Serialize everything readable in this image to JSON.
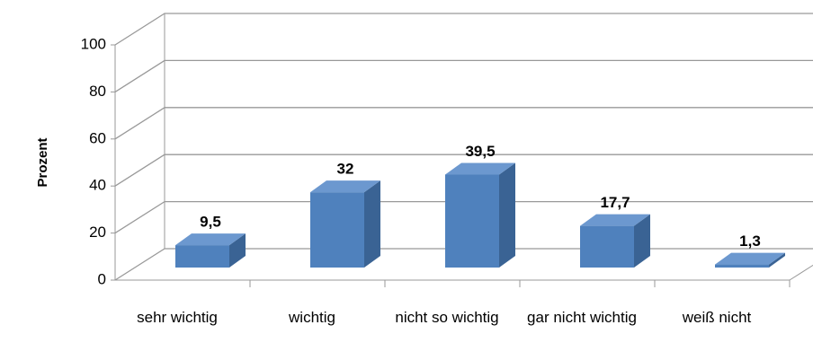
{
  "chart_data": {
    "type": "bar3d",
    "y_label": "Prozent",
    "categories": [
      "sehr wichtig",
      "wichtig",
      "nicht so wichtig",
      "gar nicht wichtig",
      "weiß nicht"
    ],
    "values": [
      9.5,
      32,
      39.5,
      17.7,
      1.3
    ],
    "value_labels": [
      "9,5",
      "32",
      "39,5",
      "17,7",
      "1,3"
    ],
    "color": "#4f81bd",
    "ylim": [
      0,
      100
    ],
    "yticks": [
      0,
      20,
      40,
      60,
      80,
      100
    ],
    "grid": true
  }
}
